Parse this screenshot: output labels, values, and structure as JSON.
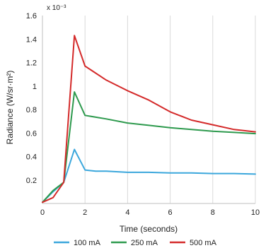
{
  "chart_data": {
    "type": "line",
    "xlabel": "Time (seconds)",
    "ylabel": "Radiance (W/sr·m²)",
    "y_multiplier": "x 10⁻³",
    "xlim": [
      0,
      10
    ],
    "ylim": [
      0,
      1.6
    ],
    "xticks": [
      0,
      2,
      4,
      6,
      8,
      10
    ],
    "yticks": [
      0.2,
      0.4,
      0.6,
      0.8,
      1,
      1.2,
      1.4,
      1.6
    ],
    "ytick_labels": [
      "0.2",
      "0.4",
      "0.6",
      "0.8",
      "1",
      "1.2",
      "1.4",
      "1.6"
    ],
    "xtick_labels": [
      "0",
      "2",
      "4",
      "6",
      "8",
      "10"
    ],
    "origin_label": "0",
    "grid": "vertical",
    "legend_position": "bottom",
    "series": [
      {
        "name": "100 mA",
        "color": "#3ba7dc",
        "points": [
          [
            0,
            0.01
          ],
          [
            0.5,
            0.1
          ],
          [
            1,
            0.18
          ],
          [
            1.5,
            0.46
          ],
          [
            2,
            0.285
          ],
          [
            2.5,
            0.275
          ],
          [
            3,
            0.275
          ],
          [
            4,
            0.265
          ],
          [
            5,
            0.265
          ],
          [
            6,
            0.26
          ],
          [
            7,
            0.26
          ],
          [
            8,
            0.255
          ],
          [
            9,
            0.255
          ],
          [
            10,
            0.25
          ]
        ]
      },
      {
        "name": "250 mA",
        "color": "#2e9a4e",
        "points": [
          [
            0,
            0.01
          ],
          [
            0.5,
            0.11
          ],
          [
            1,
            0.18
          ],
          [
            1.5,
            0.95
          ],
          [
            2,
            0.75
          ],
          [
            3,
            0.72
          ],
          [
            4,
            0.685
          ],
          [
            5,
            0.665
          ],
          [
            6,
            0.645
          ],
          [
            7,
            0.63
          ],
          [
            8,
            0.615
          ],
          [
            9,
            0.605
          ],
          [
            10,
            0.595
          ]
        ]
      },
      {
        "name": "500 mA",
        "color": "#d42a2a",
        "points": [
          [
            0,
            0.01
          ],
          [
            0.5,
            0.05
          ],
          [
            1,
            0.18
          ],
          [
            1.5,
            1.43
          ],
          [
            2,
            1.17
          ],
          [
            3,
            1.05
          ],
          [
            4,
            0.96
          ],
          [
            5,
            0.88
          ],
          [
            6,
            0.78
          ],
          [
            7,
            0.71
          ],
          [
            8,
            0.67
          ],
          [
            9,
            0.63
          ],
          [
            10,
            0.61
          ]
        ]
      }
    ]
  }
}
